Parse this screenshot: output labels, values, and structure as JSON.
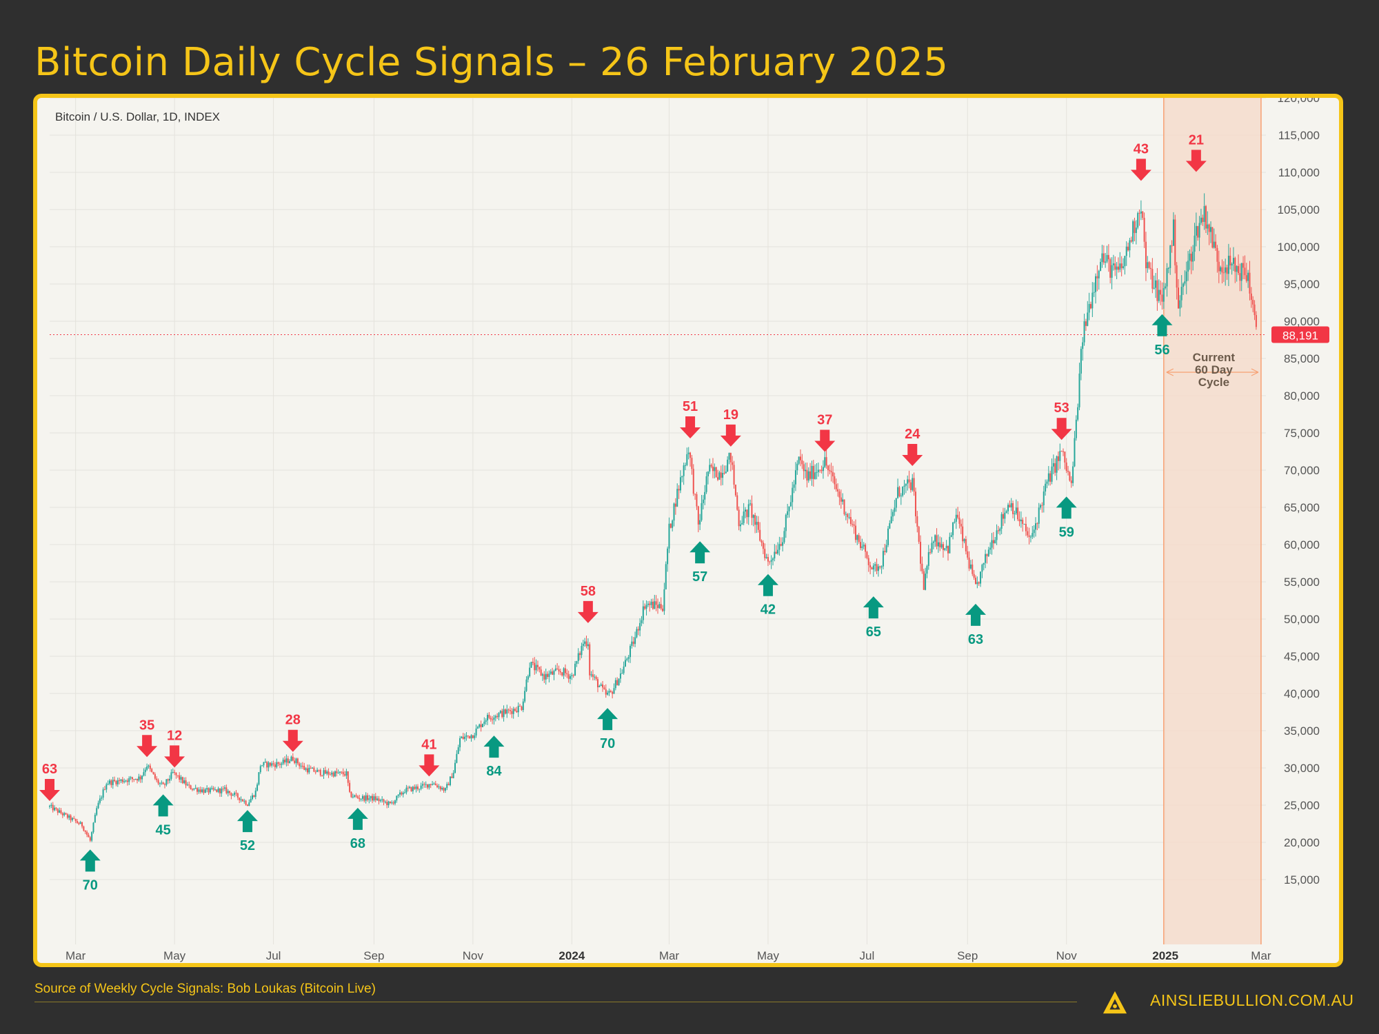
{
  "header": {
    "title": "Bitcoin Daily Cycle Signals – 26 February 2025"
  },
  "chart_data": {
    "type": "candlestick",
    "subtitle": "Bitcoin / U.S. Dollar, 1D, INDEX",
    "ylim": [
      10000,
      120000
    ],
    "y_ticks": [
      15000,
      20000,
      25000,
      30000,
      35000,
      40000,
      45000,
      50000,
      55000,
      60000,
      65000,
      70000,
      75000,
      80000,
      85000,
      90000,
      95000,
      100000,
      105000,
      110000,
      115000,
      120000
    ],
    "y_tick_labels": [
      "15,000",
      "20,000",
      "25,000",
      "30,000",
      "35,000",
      "40,000",
      "45,000",
      "50,000",
      "55,000",
      "60,000",
      "65,000",
      "70,000",
      "75,000",
      "80,000",
      "85,000",
      "90,000",
      "95,000",
      "100,000",
      "105,000",
      "110,000",
      "115,000",
      "120,000"
    ],
    "x_ticks": [
      {
        "label": "Mar",
        "date": "2023-03-01",
        "bold": false
      },
      {
        "label": "May",
        "date": "2023-05-01",
        "bold": false
      },
      {
        "label": "Jul",
        "date": "2023-07-01",
        "bold": false
      },
      {
        "label": "Sep",
        "date": "2023-09-01",
        "bold": false
      },
      {
        "label": "Nov",
        "date": "2023-11-01",
        "bold": false
      },
      {
        "label": "2024",
        "date": "2024-01-01",
        "bold": true
      },
      {
        "label": "Mar",
        "date": "2024-03-01",
        "bold": false
      },
      {
        "label": "May",
        "date": "2024-05-01",
        "bold": false
      },
      {
        "label": "Jul",
        "date": "2024-07-01",
        "bold": false
      },
      {
        "label": "Sep",
        "date": "2024-09-01",
        "bold": false
      },
      {
        "label": "Nov",
        "date": "2024-11-01",
        "bold": false
      },
      {
        "label": "2025",
        "date": "2025-01-01",
        "bold": true
      },
      {
        "label": "Mar",
        "date": "2025-03-01",
        "bold": false
      }
    ],
    "x_range": [
      "2023-02-13",
      "2025-03-04"
    ],
    "price_path": [
      [
        "2023-02-13",
        24800
      ],
      [
        "2023-02-25",
        23300
      ],
      [
        "2023-03-05",
        22300
      ],
      [
        "2023-03-10",
        20200
      ],
      [
        "2023-03-14",
        24500
      ],
      [
        "2023-03-20",
        28000
      ],
      [
        "2023-04-01",
        28400
      ],
      [
        "2023-04-10",
        28700
      ],
      [
        "2023-04-14",
        30400
      ],
      [
        "2023-04-20",
        28200
      ],
      [
        "2023-04-24",
        27500
      ],
      [
        "2023-04-30",
        29300
      ],
      [
        "2023-05-03",
        28800
      ],
      [
        "2023-05-10",
        27400
      ],
      [
        "2023-05-20",
        26900
      ],
      [
        "2023-06-01",
        27000
      ],
      [
        "2023-06-10",
        26000
      ],
      [
        "2023-06-15",
        25200
      ],
      [
        "2023-06-20",
        26800
      ],
      [
        "2023-06-23",
        30400
      ],
      [
        "2023-07-01",
        30500
      ],
      [
        "2023-07-06",
        30600
      ],
      [
        "2023-07-13",
        31300
      ],
      [
        "2023-07-20",
        29900
      ],
      [
        "2023-08-01",
        29300
      ],
      [
        "2023-08-15",
        29200
      ],
      [
        "2023-08-17",
        26400
      ],
      [
        "2023-08-22",
        26000
      ],
      [
        "2023-09-01",
        25900
      ],
      [
        "2023-09-11",
        25100
      ],
      [
        "2023-09-20",
        27000
      ],
      [
        "2023-10-01",
        27500
      ],
      [
        "2023-10-07",
        28000
      ],
      [
        "2023-10-15",
        27000
      ],
      [
        "2023-10-20",
        29500
      ],
      [
        "2023-10-24",
        33900
      ],
      [
        "2023-11-01",
        34500
      ],
      [
        "2023-11-09",
        36700
      ],
      [
        "2023-11-20",
        37400
      ],
      [
        "2023-12-01",
        38200
      ],
      [
        "2023-12-06",
        44000
      ],
      [
        "2023-12-15",
        42300
      ],
      [
        "2023-12-25",
        43000
      ],
      [
        "2024-01-01",
        42300
      ],
      [
        "2024-01-08",
        46800
      ],
      [
        "2024-01-11",
        47000
      ],
      [
        "2024-01-12",
        42800
      ],
      [
        "2024-01-22",
        39800
      ],
      [
        "2024-01-25",
        40000
      ],
      [
        "2024-02-01",
        43000
      ],
      [
        "2024-02-09",
        47500
      ],
      [
        "2024-02-15",
        52000
      ],
      [
        "2024-02-26",
        51700
      ],
      [
        "2024-03-01",
        62000
      ],
      [
        "2024-03-05",
        66000
      ],
      [
        "2024-03-13",
        73100
      ],
      [
        "2024-03-19",
        62500
      ],
      [
        "2024-03-25",
        69900
      ],
      [
        "2024-04-01",
        69600
      ],
      [
        "2024-04-08",
        71700
      ],
      [
        "2024-04-13",
        63000
      ],
      [
        "2024-04-20",
        64900
      ],
      [
        "2024-05-01",
        57500
      ],
      [
        "2024-05-10",
        61000
      ],
      [
        "2024-05-20",
        71400
      ],
      [
        "2024-05-25",
        69000
      ],
      [
        "2024-06-05",
        71100
      ],
      [
        "2024-06-15",
        66000
      ],
      [
        "2024-06-25",
        61000
      ],
      [
        "2024-07-05",
        56500
      ],
      [
        "2024-07-10",
        57800
      ],
      [
        "2024-07-20",
        67000
      ],
      [
        "2024-07-29",
        68200
      ],
      [
        "2024-08-05",
        54000
      ],
      [
        "2024-08-10",
        61000
      ],
      [
        "2024-08-20",
        59500
      ],
      [
        "2024-08-25",
        64200
      ],
      [
        "2024-09-06",
        54000
      ],
      [
        "2024-09-15",
        60000
      ],
      [
        "2024-09-27",
        65800
      ],
      [
        "2024-10-10",
        60500
      ],
      [
        "2024-10-20",
        68300
      ],
      [
        "2024-10-29",
        72500
      ],
      [
        "2024-11-04",
        67800
      ],
      [
        "2024-11-11",
        88000
      ],
      [
        "2024-11-22",
        98900
      ],
      [
        "2024-12-01",
        96400
      ],
      [
        "2024-12-05",
        97000
      ],
      [
        "2024-12-17",
        106000
      ],
      [
        "2024-12-20",
        97500
      ],
      [
        "2024-12-30",
        92500
      ],
      [
        "2025-01-06",
        102200
      ],
      [
        "2025-01-09",
        92000
      ],
      [
        "2025-01-20",
        102000
      ],
      [
        "2025-01-25",
        104700
      ],
      [
        "2025-02-03",
        97700
      ],
      [
        "2025-02-10",
        97500
      ],
      [
        "2025-02-21",
        96100
      ],
      [
        "2025-02-24",
        91500
      ],
      [
        "2025-02-26",
        88191
      ]
    ],
    "last_price": "88,191",
    "current_price": 88191,
    "signals": [
      {
        "label": "63",
        "type": "high",
        "date": "2023-02-13",
        "price": 25000
      },
      {
        "label": "70",
        "type": "low",
        "date": "2023-03-10",
        "price": 19600
      },
      {
        "label": "35",
        "type": "high",
        "date": "2023-04-14",
        "price": 30900
      },
      {
        "label": "45",
        "type": "low",
        "date": "2023-04-24",
        "price": 27000
      },
      {
        "label": "12",
        "type": "high",
        "date": "2023-05-01",
        "price": 29500
      },
      {
        "label": "52",
        "type": "low",
        "date": "2023-06-15",
        "price": 24900
      },
      {
        "label": "28",
        "type": "high",
        "date": "2023-07-13",
        "price": 31600
      },
      {
        "label": "68",
        "type": "low",
        "date": "2023-08-22",
        "price": 25200
      },
      {
        "label": "41",
        "type": "high",
        "date": "2023-10-05",
        "price": 28300
      },
      {
        "label": "84",
        "type": "low",
        "date": "2023-11-14",
        "price": 34900
      },
      {
        "label": "58",
        "type": "high",
        "date": "2024-01-11",
        "price": 48900
      },
      {
        "label": "70",
        "type": "low",
        "date": "2024-01-23",
        "price": 38600
      },
      {
        "label": "51",
        "type": "high",
        "date": "2024-03-14",
        "price": 73700
      },
      {
        "label": "57",
        "type": "low",
        "date": "2024-03-20",
        "price": 61000
      },
      {
        "label": "19",
        "type": "high",
        "date": "2024-04-08",
        "price": 72600
      },
      {
        "label": "42",
        "type": "low",
        "date": "2024-05-01",
        "price": 56600
      },
      {
        "label": "37",
        "type": "high",
        "date": "2024-06-05",
        "price": 71900
      },
      {
        "label": "65",
        "type": "low",
        "date": "2024-07-05",
        "price": 53600
      },
      {
        "label": "24",
        "type": "high",
        "date": "2024-07-29",
        "price": 70000
      },
      {
        "label": "63",
        "type": "low",
        "date": "2024-09-06",
        "price": 52600
      },
      {
        "label": "53",
        "type": "high",
        "date": "2024-10-29",
        "price": 73500
      },
      {
        "label": "59",
        "type": "low",
        "date": "2024-11-01",
        "price": 67000
      },
      {
        "label": "43",
        "type": "high",
        "date": "2024-12-17",
        "price": 108300
      },
      {
        "label": "56",
        "type": "low",
        "date": "2024-12-30",
        "price": 91500
      },
      {
        "label": "21",
        "type": "high",
        "date": "2025-01-20",
        "price": 109500
      }
    ],
    "cycle_box": {
      "start": "2024-12-31",
      "end": "2025-03-01",
      "label_lines": [
        "Current",
        "60 Day",
        "Cycle"
      ]
    },
    "colors": {
      "up": "#26a69a",
      "down": "#ef5350",
      "signal_high": "#f23645",
      "signal_low": "#089981",
      "cycle_fill": "#f5dccd",
      "cycle_line": "#f7a072",
      "price_tag": "#f23645"
    }
  },
  "footer": {
    "source": "Source of Weekly Cycle Signals: Bob Loukas (Bitcoin Live)",
    "brand": "AINSLIEBULLION.COM.AU"
  }
}
